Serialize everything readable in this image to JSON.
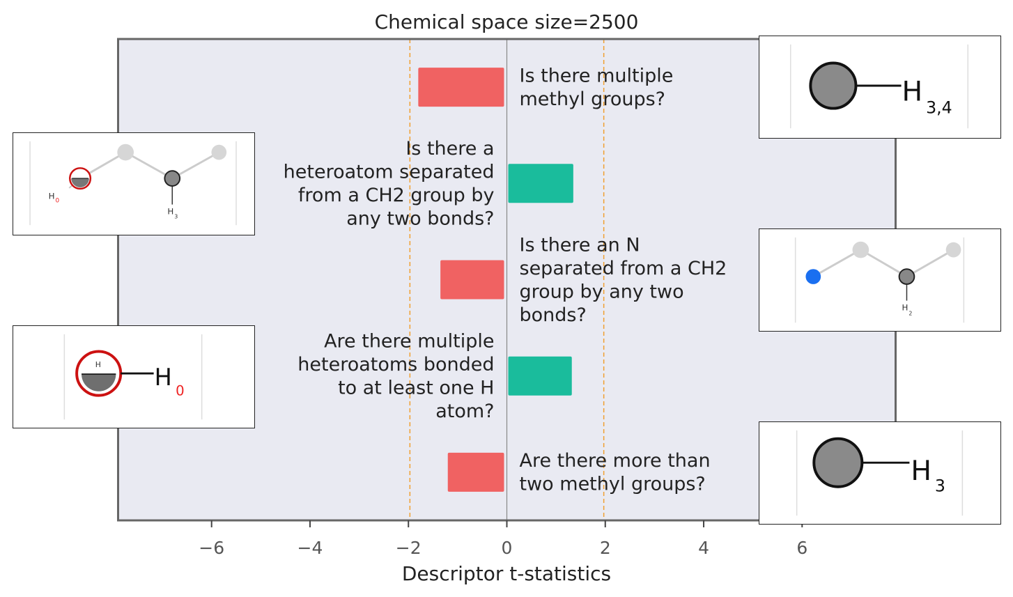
{
  "chart_data": {
    "type": "bar",
    "orientation": "horizontal",
    "title": "Chemical space size=2500",
    "xlabel": "Descriptor t-statistics",
    "ylabel": "",
    "xlim": [
      -7.9,
      7.9
    ],
    "xticks": [
      -6,
      -4,
      -2,
      0,
      2,
      4,
      6
    ],
    "xtick_labels": [
      "−6",
      "−4",
      "−2",
      "0",
      "2",
      "4",
      "6"
    ],
    "threshold_lines": [
      -1.97,
      1.97
    ],
    "grid": false,
    "bars": [
      {
        "label": "Is there multiple methyl groups?",
        "lines": [
          "Is there multiple",
          "methyl groups?"
        ],
        "value": -1.8
      },
      {
        "label": "Is there a heteroatom separated from a CH2 group by any two bonds?",
        "lines": [
          "Is there a",
          "heteroatom separated",
          "from a CH2 group by",
          "any two bonds?"
        ],
        "value": 1.35
      },
      {
        "label": "Is there an N separated from a CH2 group by any two bonds?",
        "lines": [
          "Is there an N",
          "separated from a CH2",
          "group by any two",
          "bonds?"
        ],
        "value": -1.35
      },
      {
        "label": "Are there multiple heteroatoms bonded to at least one H atom?",
        "lines": [
          "Are there multiple",
          "heteroatoms bonded",
          "to at least one H",
          "atom?"
        ],
        "value": 1.32
      },
      {
        "label": "Are there more than two methyl groups?",
        "lines": [
          "Are there more than",
          "two methyl groups?"
        ],
        "value": -1.2
      }
    ],
    "colors": {
      "negative": "#f06262",
      "positive": "#1abc9c",
      "threshold": "#f0a030",
      "plot_bg": "#e9eaf2",
      "frame": "#666666",
      "zero_line": "#888888"
    }
  },
  "insets": [
    {
      "id": "methyl-h34",
      "sub": "3,4"
    },
    {
      "id": "heteroatom-ch2",
      "h_top": "H",
      "h_zero": "0",
      "h_bottom": "H",
      "h_bottom_sub": "3"
    },
    {
      "id": "nitrogen-ch2",
      "h": "H",
      "h_sub": "2"
    },
    {
      "id": "heteroatom-h0",
      "h": "H",
      "sub": "0",
      "inner_h": "H"
    },
    {
      "id": "methyl-h3",
      "h": "H",
      "sub": "3"
    }
  ]
}
